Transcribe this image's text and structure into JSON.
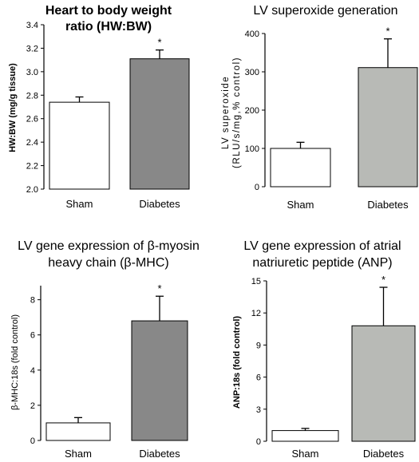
{
  "chart_data": [
    {
      "type": "bar",
      "title_lines": [
        "Heart to body weight",
        "ratio (HW:BW)"
      ],
      "ylabel": "HW:BW (mg/g tissue)",
      "categories": [
        "Sham",
        "Diabetes"
      ],
      "values": [
        2.74,
        3.11
      ],
      "errors": [
        0.045,
        0.075
      ],
      "significance": [
        "",
        "*"
      ],
      "ylim": [
        2.0,
        3.4
      ],
      "yticks": [
        2.0,
        2.2,
        2.4,
        2.6,
        2.8,
        3.0,
        3.2,
        3.4
      ],
      "ytick_labels": [
        "2.0",
        "2.2",
        "2.4",
        "2.6",
        "2.8",
        "3.0",
        "3.2",
        "3.4"
      ],
      "colors": [
        "#ffffff",
        "#888888"
      ]
    },
    {
      "type": "bar",
      "title_lines": [
        "LV superoxide generation"
      ],
      "ylabel_lines": [
        "LV superoxide",
        "(RLU/s/mg,% control)"
      ],
      "categories": [
        "Sham",
        "Diabetes"
      ],
      "values": [
        100,
        311
      ],
      "errors": [
        16,
        75
      ],
      "significance": [
        "",
        "*"
      ],
      "ylim": [
        0,
        400
      ],
      "yticks": [
        0,
        100,
        200,
        300,
        400
      ],
      "ytick_labels": [
        "0",
        "100",
        "200",
        "300",
        "400"
      ],
      "colors": [
        "#ffffff",
        "#b8bab6"
      ]
    },
    {
      "type": "bar",
      "title_lines": [
        "LV gene expression of β-myosin",
        "heavy chain (β-MHC)"
      ],
      "ylabel": "β-MHC:18s (fold control)",
      "categories": [
        "Sham",
        "Diabetes"
      ],
      "values": [
        1.0,
        6.8
      ],
      "errors": [
        0.3,
        1.4
      ],
      "significance": [
        "",
        "*"
      ],
      "ylim": [
        0,
        8.8
      ],
      "yticks": [
        0,
        2,
        4,
        6,
        8
      ],
      "ytick_labels": [
        "0",
        "2",
        "4",
        "6",
        "8"
      ],
      "colors": [
        "#ffffff",
        "#888888"
      ]
    },
    {
      "type": "bar",
      "title_lines": [
        "LV gene expression of atrial",
        "natriuretic peptide (ANP)"
      ],
      "ylabel": "ANP:18s (fold control)",
      "categories": [
        "Sham",
        "Diabetes"
      ],
      "values": [
        1.0,
        10.8
      ],
      "errors": [
        0.2,
        3.6
      ],
      "significance": [
        "",
        "*"
      ],
      "ylim": [
        0,
        15
      ],
      "yticks": [
        0,
        3,
        6,
        9,
        12,
        15
      ],
      "ytick_labels": [
        "0",
        "3",
        "6",
        "9",
        "12",
        "15"
      ],
      "colors": [
        "#ffffff",
        "#b8bab6"
      ]
    }
  ]
}
